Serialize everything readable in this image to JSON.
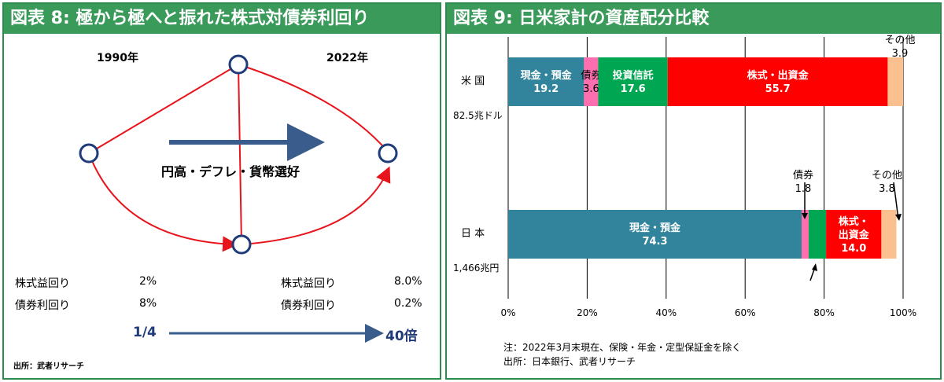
{
  "figure8": {
    "title": "図表 8: 極から極へと振れた株式対債券利回り",
    "year_left": "1990年",
    "year_right": "2022年",
    "center_text": "円高・デフレ・貨幣選好",
    "rows": [
      {
        "left_label": "株式益回り",
        "left_value": "2%",
        "right_label": "株式益回り",
        "right_value": "8.0%"
      },
      {
        "left_label": "債券利回り",
        "left_value": "8%",
        "right_label": "債券利回り",
        "right_value": "0.2%"
      }
    ],
    "ratio_left": "1/4",
    "ratio_right": "40倍",
    "source": "出所：武者リサーチ",
    "colors": {
      "red": "#e8141c",
      "navy": "#1f3b7a",
      "arrow": "#3a5c8c"
    }
  },
  "figure9": {
    "title": "図表 9: 日米家計の資産配分比較",
    "note": "注：2022年3月末現在、保険・年金・定型保証金を除く",
    "source": "出所：日本銀行、武者リサーチ"
  },
  "chart_data": {
    "type": "bar",
    "orientation": "horizontal",
    "stacked": "percent",
    "categories": [
      "米 国",
      "日 本"
    ],
    "category_totals": [
      "82.5兆ドル",
      "1,466兆円"
    ],
    "series": [
      {
        "name": "現金・預金",
        "values": [
          19.2,
          74.3
        ],
        "color": "#31849b"
      },
      {
        "name": "債券",
        "values": [
          3.6,
          1.8
        ],
        "color": "#ff6fb0"
      },
      {
        "name": "投資信託",
        "values": [
          17.6,
          4.4
        ],
        "color": "#00a651"
      },
      {
        "name": "株式・出資金",
        "values": [
          55.7,
          14.0
        ],
        "color": "#ff0000"
      },
      {
        "name": "その他",
        "values": [
          3.9,
          3.8
        ],
        "color": "#fac090"
      }
    ],
    "segment_labels": {
      "米 国": [
        "現金・預金\n19.2",
        "債券\n3.6",
        "投資信託\n17.6",
        "株式・出資金\n55.7",
        "その他\n3.9"
      ],
      "日 本": [
        "現金・預金\n74.3",
        "債券\n1.8",
        "",
        "株式・\n出資金\n14.0",
        "その他\n3.8"
      ]
    },
    "xlim": [
      0,
      100
    ],
    "xticks": [
      "0%",
      "20%",
      "40%",
      "60%",
      "80%",
      "100%"
    ],
    "grid": true
  }
}
